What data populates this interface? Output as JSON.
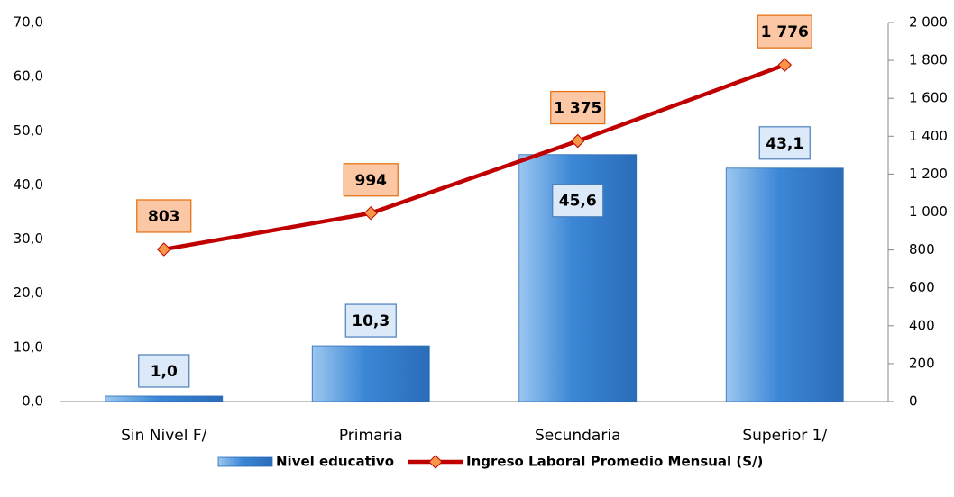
{
  "chart_data": {
    "type": "bar",
    "categories": [
      "Sin Nivel F/",
      "Primaria",
      "Secundaria",
      "Superior 1/"
    ],
    "series": [
      {
        "name": "Nivel educativo",
        "type": "bar",
        "color": "#3b87d6",
        "values": [
          1.0,
          10.3,
          45.6,
          43.1
        ],
        "value_labels": [
          "1,0",
          "10,3",
          "45,6",
          "43,1"
        ]
      },
      {
        "name": "Ingreso Laboral Promedio Mensual (S/)",
        "type": "line",
        "axis": "y2",
        "color": "#c00000",
        "marker_color": "#f79646",
        "values": [
          803,
          994,
          1375,
          1776
        ],
        "value_labels": [
          "803",
          "994",
          "1 375",
          "1 776"
        ]
      }
    ],
    "ylim": [
      0,
      70
    ],
    "yticks": [
      {
        "value": 0,
        "label": "0,0"
      },
      {
        "value": 10,
        "label": "10,0"
      },
      {
        "value": 20,
        "label": "20,0"
      },
      {
        "value": 30,
        "label": "30,0"
      },
      {
        "value": 40,
        "label": "40,0"
      },
      {
        "value": 50,
        "label": "50,0"
      },
      {
        "value": 60,
        "label": "60,0"
      },
      {
        "value": 70,
        "label": "70,0"
      }
    ],
    "y2lim": [
      0,
      2000
    ],
    "y2ticks": [
      0,
      200,
      400,
      600,
      800,
      {
        "value": 1000,
        "label": "1 000"
      },
      {
        "value": 1200,
        "label": "1 200"
      },
      {
        "value": 1400,
        "label": "1 400"
      },
      {
        "value": 1600,
        "label": "1 600"
      },
      {
        "value": 1800,
        "label": "1 800"
      },
      {
        "value": 2000,
        "label": "2 000"
      }
    ],
    "legend": "bottom"
  }
}
